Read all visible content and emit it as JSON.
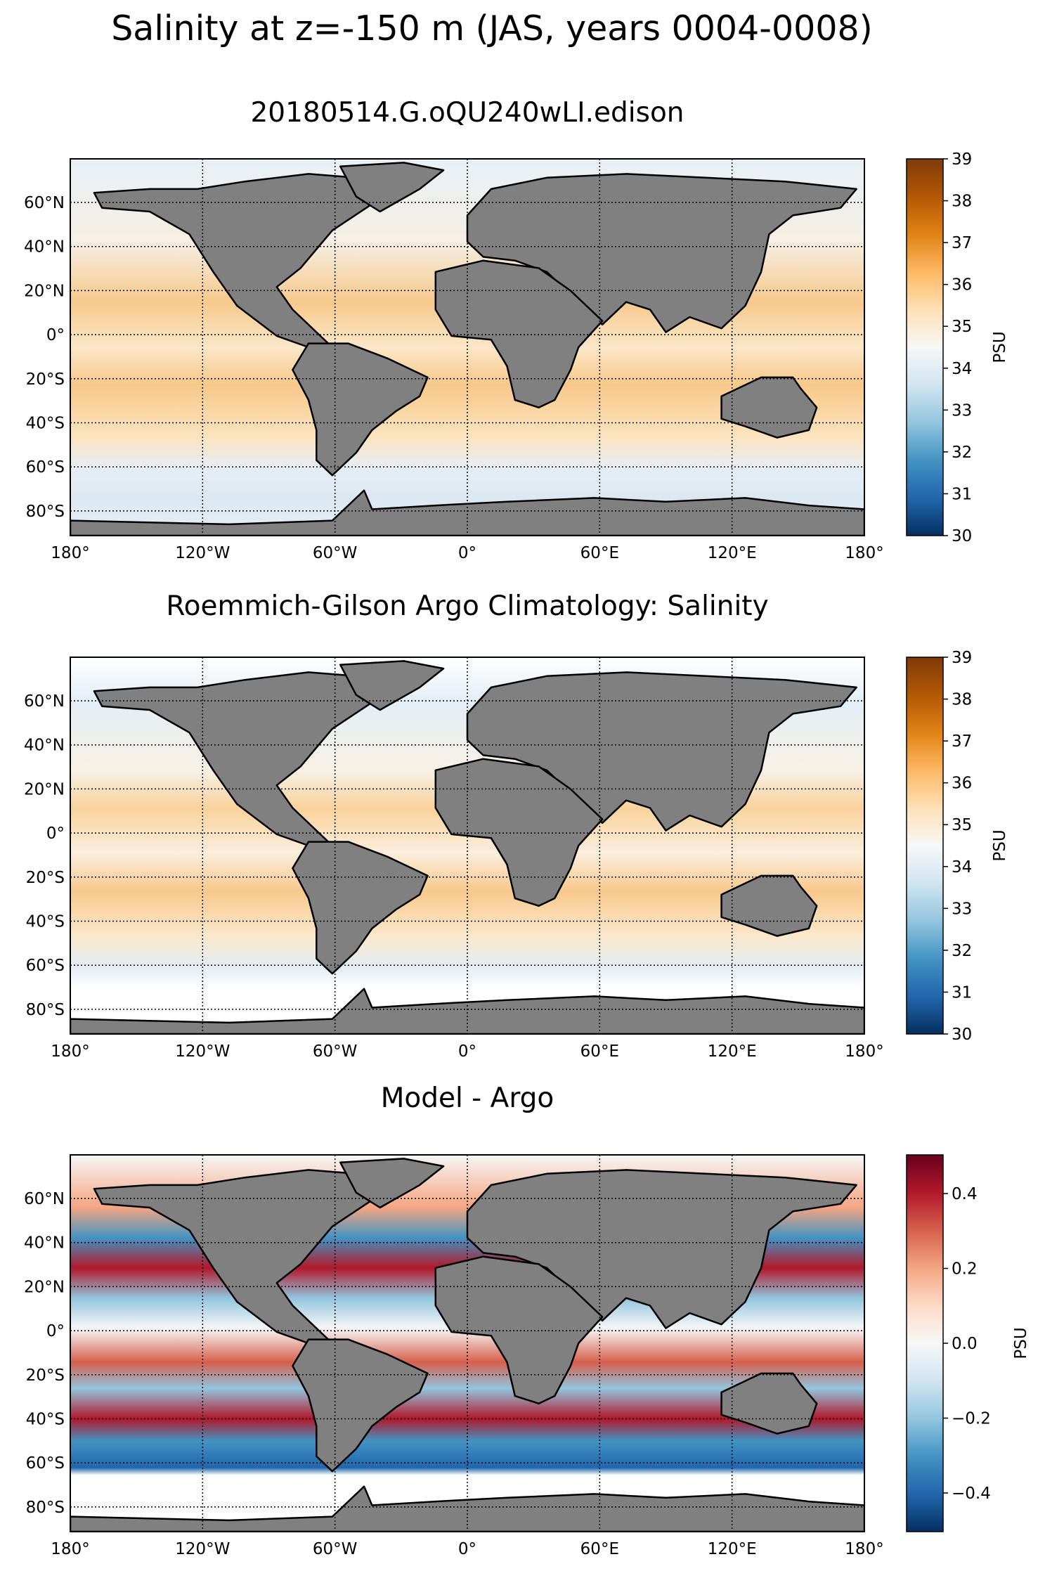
{
  "figure": {
    "title": "Salinity at z=-150 m (JAS, years 0004-0008)"
  },
  "colors": {
    "land": "#808080",
    "frame": "#000000",
    "grid": "#000000",
    "salinity_cmap": [
      "#053061",
      "#2166ac",
      "#4393c3",
      "#92c5de",
      "#d1e5f0",
      "#f7f7f7",
      "#fee0b6",
      "#fdb863",
      "#e08214",
      "#b35806",
      "#7f3b08"
    ],
    "bias_cmap": [
      "#053061",
      "#2166ac",
      "#4393c3",
      "#92c5de",
      "#d1e5f0",
      "#f7f7f7",
      "#fddbc7",
      "#f4a582",
      "#d6604d",
      "#b2182b",
      "#67001f"
    ]
  },
  "axes": {
    "lon_ticks": [
      "180°",
      "120°W",
      "60°W",
      "0°",
      "60°E",
      "120°E",
      "180°"
    ],
    "lat_ticks": [
      "60°N",
      "40°N",
      "20°N",
      "0°",
      "20°S",
      "40°S",
      "60°S",
      "80°S"
    ]
  },
  "panels": [
    {
      "title": "20180514.G.oQU240wLI.edison",
      "colorbar": {
        "label": "PSU",
        "ticks": [
          "39",
          "38",
          "37",
          "36",
          "35",
          "34",
          "33",
          "32",
          "31",
          "30"
        ],
        "cmap": "salinity"
      }
    },
    {
      "title": "Roemmich-Gilson Argo Climatology: Salinity",
      "colorbar": {
        "label": "PSU",
        "ticks": [
          "39",
          "38",
          "37",
          "36",
          "35",
          "34",
          "33",
          "32",
          "31",
          "30"
        ],
        "cmap": "salinity"
      }
    },
    {
      "title": "Model - Argo",
      "colorbar": {
        "label": "PSU",
        "ticks": [
          "0.4",
          "0.2",
          "0.0",
          "−0.2",
          "−0.4"
        ],
        "cmap": "bias"
      }
    }
  ]
}
